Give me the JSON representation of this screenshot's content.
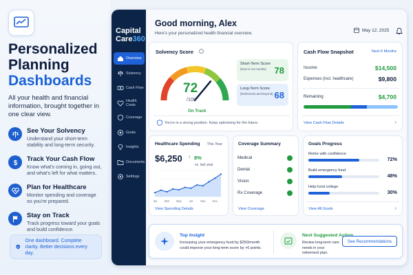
{
  "hero": {
    "title_line1": "Personalized",
    "title_line2": "Planning",
    "title_line3": "Dashboards",
    "lead": "All your health and financial information, brought together in one clear view.",
    "features": [
      {
        "title": "See Your Solvency",
        "desc": "Understand your short-term stability and long-term security.",
        "icon": "scale-icon"
      },
      {
        "title": "Track Your Cash Flow",
        "desc": "Know what's coming in, going out, and what's left for what matters.",
        "icon": "dollar-icon"
      },
      {
        "title": "Plan for Healthcare",
        "desc": "Monitor spending and coverage so you're prepared.",
        "icon": "heart-pulse-icon"
      },
      {
        "title": "Stay on Track",
        "desc": "Track progress toward your goals and build confidence.",
        "icon": "flag-icon"
      }
    ],
    "note": "One dashboard. Complete clarity. Better decisions every day."
  },
  "brand": {
    "line1": "Capital",
    "line2a": "Care",
    "line2b": "360"
  },
  "nav": [
    {
      "label": "Overview",
      "icon": "home-icon",
      "active": true
    },
    {
      "label": "Solvency",
      "icon": "scale-icon"
    },
    {
      "label": "Cash Flow",
      "icon": "cash-icon"
    },
    {
      "label": "Health Costs",
      "icon": "heart-pulse-icon"
    },
    {
      "label": "Coverage",
      "icon": "shield-icon"
    },
    {
      "label": "Goals",
      "icon": "target-icon"
    },
    {
      "label": "Insights",
      "icon": "lightbulb-icon"
    },
    {
      "label": "Documents",
      "icon": "folder-icon"
    },
    {
      "label": "Settings",
      "icon": "gear-icon"
    }
  ],
  "header": {
    "greeting": "Good morning, Alex",
    "subtitle": "Here's your personalized health-financial overview.",
    "date": "May 12, 2025"
  },
  "solvency": {
    "title": "Solvency Score",
    "score": "72",
    "denominator": "/100",
    "status": "On Track",
    "gauge_fraction": 0.72,
    "short_label": "Short-Term Score",
    "short_sub": "(Next 6–24 months)",
    "short_value": "78",
    "long_label": "Long-Term Score",
    "long_sub": "(Retirement and beyond)",
    "long_value": "68",
    "message": "You're in a strong position. Keep optimizing for the future."
  },
  "cashflow": {
    "title": "Cash Flow Snapshot",
    "period": "Next 6 Months",
    "income_label": "Income",
    "income_value": "$14,500",
    "expenses_label": "Expenses (incl. healthcare)",
    "expenses_value": "$9,800",
    "remaining_label": "Remaining",
    "remaining_value": "$4,700",
    "link": "View Cash Flow Details",
    "colors": {
      "green": "#1f9a3e",
      "blue": "#1f62d8",
      "light": "#8cc3ff"
    }
  },
  "healthcare": {
    "title": "Healthcare Spending",
    "period": "This Year",
    "amount": "$6,250",
    "change": "8%",
    "change_sub": "vs. last year",
    "link": "View Spending Details",
    "chart_data": {
      "type": "area",
      "x": [
        "Jan",
        "Feb",
        "Mar",
        "Apr",
        "May",
        "Jun",
        "Jul",
        "Aug",
        "Sep",
        "Oct",
        "Nov",
        "Dec"
      ],
      "tick_labels": [
        "Jan",
        "Mar",
        "May",
        "Jul",
        "Sep",
        "Nov"
      ],
      "values": [
        10,
        16,
        12,
        19,
        17,
        23,
        21,
        29,
        27,
        37,
        46,
        56
      ],
      "ylim": [
        0,
        65
      ],
      "title": "",
      "xlabel": "",
      "ylabel": ""
    }
  },
  "coverage": {
    "title": "Coverage Summary",
    "items": [
      "Medical",
      "Dental",
      "Vision",
      "Rx Coverage"
    ],
    "link": "View Coverage"
  },
  "goals": {
    "title": "Goals Progress",
    "items": [
      {
        "label": "Retire with confidence",
        "pct": "72%",
        "fraction": 0.72
      },
      {
        "label": "Build emergency fund",
        "pct": "48%",
        "fraction": 0.48
      },
      {
        "label": "Help fund college",
        "pct": "30%",
        "fraction": 0.3
      }
    ],
    "link": "View All Goals"
  },
  "insight": {
    "title": "Top Insight",
    "text": "Increasing your emergency fund by $250/month could improve your long-term score by +6 points.",
    "action_title": "Next Suggested Action",
    "action_text": "Review long-term care needs in your retirement plan.",
    "button": "See Recommendations"
  }
}
